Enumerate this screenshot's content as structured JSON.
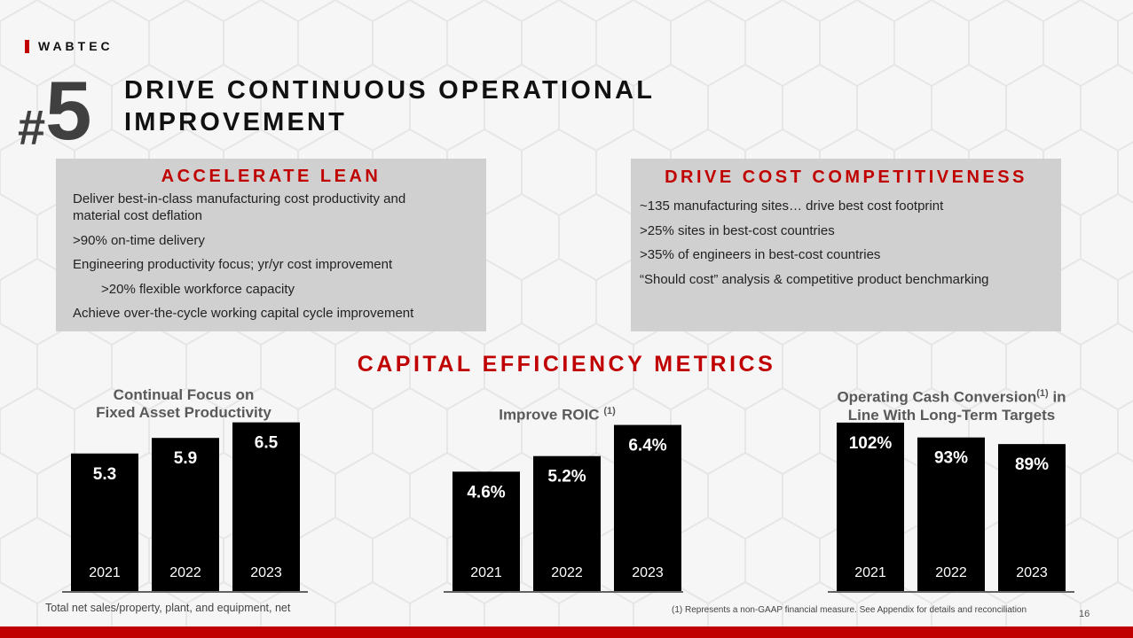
{
  "brand": {
    "logo_text": "WABTEC",
    "accent_color": "#c00000"
  },
  "header": {
    "number_hash": "#",
    "number_digit": "5",
    "title_line1": "DRIVE CONTINUOUS OPERATIONAL",
    "title_line2": "IMPROVEMENT"
  },
  "left_box": {
    "heading": "ACCELERATE LEAN",
    "items": [
      "Deliver best-in-class manufacturing  cost productivity  and",
      "material cost deflation",
      ">90% on-time delivery",
      "Engineering productivity focus; yr/yr cost improvement",
      ">20% flexible workforce capacity",
      "Achieve over-the-cycle working capital cycle improvement"
    ]
  },
  "right_box": {
    "heading": "DRIVE COST COMPETITIVENESS",
    "items": [
      "~135 manufacturing  sites… drive best cost footprint",
      ">25% sites in best-cost countries",
      ">35% of engineers in best-cost countries",
      "“Should cost” analysis & competitive product benchmarking"
    ]
  },
  "section_title": "CAPITAL EFFICIENCY METRICS",
  "chart_titles": {
    "c1_line1": "Continual Focus on",
    "c1_line2": "Fixed Asset Productivity",
    "c2_main": "Improve ROIC",
    "c2_sup": "(1)",
    "c3_pre": "Operating Cash Conversion",
    "c3_sup": "(1)",
    "c3_post": " in",
    "c3_line2": "Line With Long-Term Targets"
  },
  "chart_data": [
    {
      "type": "bar",
      "title": "Continual Focus on Fixed Asset Productivity",
      "categories": [
        "2021",
        "2022",
        "2023"
      ],
      "values": [
        5.3,
        5.9,
        6.5
      ],
      "labels": [
        "5.3",
        "5.9",
        "6.5"
      ],
      "ylim": [
        0,
        7.0
      ],
      "bar_color": "#000000"
    },
    {
      "type": "bar",
      "title": "Improve ROIC (1)",
      "categories": [
        "2021",
        "2022",
        "2023"
      ],
      "values": [
        4.6,
        5.2,
        6.4
      ],
      "labels": [
        "4.6%",
        "5.2%",
        "6.4%"
      ],
      "ylim": [
        0,
        7.0
      ],
      "bar_color": "#000000"
    },
    {
      "type": "bar",
      "title": "Operating Cash Conversion(1) in Line With Long-Term Targets",
      "categories": [
        "2021",
        "2022",
        "2023"
      ],
      "values": [
        102,
        93,
        89
      ],
      "labels": [
        "102%",
        "93%",
        "89%"
      ],
      "ylim": [
        0,
        110
      ],
      "bar_color": "#000000"
    }
  ],
  "footnotes": {
    "left": "Total net sales/property, plant, and equipment, net",
    "right": "(1) Represents a non-GAAP financial measure.  See Appendix for details and reconciliation",
    "page": "16"
  }
}
